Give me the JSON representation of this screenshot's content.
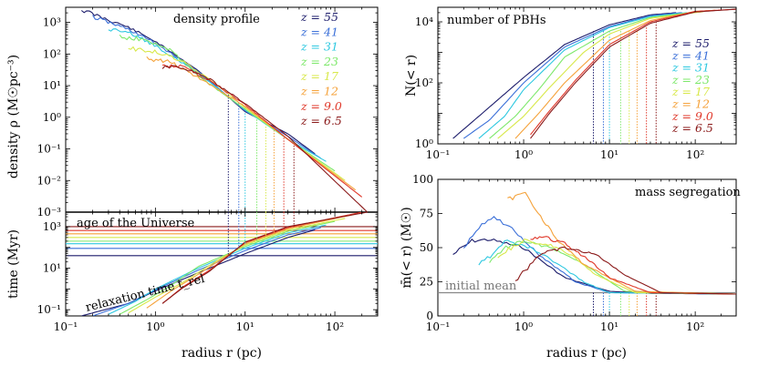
{
  "colors": [
    "#1c1c6b",
    "#3a6fd8",
    "#2ec8e0",
    "#7de86a",
    "#d8e84a",
    "#f5a23a",
    "#e0392b",
    "#8b1a1a"
  ],
  "chart_data": [
    {
      "type": "line",
      "id": "density",
      "title": "density profile",
      "xlabel": "",
      "ylabel": "density ρ (M☉pc⁻³)",
      "xscale": "log",
      "yscale": "log",
      "xlim": [
        0.1,
        300
      ],
      "ylim": [
        0.001,
        3000
      ],
      "yticks": [
        "10³",
        "10²",
        "10¹",
        "10⁰",
        "10⁻¹",
        "10⁻²",
        "10⁻³"
      ],
      "legend": [
        "z = 55",
        "z = 41",
        "z = 31",
        "z = 23",
        "z = 17",
        "z = 12",
        "z = 9.0",
        "z = 6.5"
      ],
      "legend_position": "top-right",
      "vlines": [
        6.5,
        8.5,
        10.0,
        13.5,
        17.0,
        21.0,
        27.0,
        35.0
      ],
      "series": [
        {
          "name": "z = 55",
          "rmin": 0.15,
          "rmax": 60,
          "x": [
            0.15,
            0.5,
            1,
            3,
            10,
            30,
            60
          ],
          "y": [
            2500,
            700,
            250,
            30,
            1.5,
            0.3,
            0.07
          ]
        },
        {
          "name": "z = 41",
          "rmin": 0.2,
          "rmax": 70,
          "x": [
            0.2,
            0.5,
            1,
            3,
            10,
            30,
            70
          ],
          "y": [
            1500,
            600,
            220,
            28,
            1.6,
            0.25,
            0.05
          ]
        },
        {
          "name": "z = 31",
          "rmin": 0.3,
          "rmax": 80,
          "x": [
            0.3,
            0.6,
            1,
            3,
            10,
            30,
            80
          ],
          "y": [
            600,
            400,
            180,
            25,
            1.7,
            0.2,
            0.04
          ]
        },
        {
          "name": "z = 23",
          "rmin": 0.4,
          "rmax": 100,
          "x": [
            0.4,
            0.8,
            1.5,
            3,
            10,
            30,
            100
          ],
          "y": [
            350,
            280,
            130,
            20,
            1.8,
            0.2,
            0.02
          ]
        },
        {
          "name": "z = 17",
          "rmin": 0.5,
          "rmax": 130,
          "x": [
            0.5,
            1,
            2,
            5,
            10,
            30,
            130
          ],
          "y": [
            150,
            120,
            60,
            10,
            2,
            0.2,
            0.01
          ]
        },
        {
          "name": "z = 12",
          "rmin": 0.8,
          "rmax": 170,
          "x": [
            0.8,
            1.5,
            3,
            10,
            30,
            170
          ],
          "y": [
            70,
            55,
            18,
            2.2,
            0.2,
            0.005
          ]
        },
        {
          "name": "z = 9.0",
          "rmin": 1.2,
          "rmax": 200,
          "x": [
            1.2,
            2,
            4,
            10,
            30,
            200
          ],
          "y": [
            45,
            40,
            15,
            2.5,
            0.2,
            0.003
          ]
        },
        {
          "name": "z = 6.5",
          "rmin": 1.2,
          "rmax": 230,
          "x": [
            1.2,
            2,
            4,
            10,
            30,
            230
          ],
          "y": [
            40,
            38,
            16,
            2.7,
            0.25,
            0.001
          ]
        }
      ]
    },
    {
      "type": "line",
      "id": "time",
      "xlabel": "radius r (pc)",
      "ylabel": "time (Myr)",
      "xscale": "log",
      "yscale": "log",
      "xlim": [
        0.1,
        300
      ],
      "ylim": [
        0.05,
        5000
      ],
      "xticks": [
        "10⁻¹",
        "10⁰",
        "10¹",
        "10²"
      ],
      "yticks": [
        "10³",
        "10¹",
        "10⁻¹"
      ],
      "annotations": [
        "age of the Universe",
        "relaxation time t_rel"
      ],
      "hlines": [
        {
          "name": "z = 55",
          "y": 40
        },
        {
          "name": "z = 41",
          "y": 90
        },
        {
          "name": "z = 31",
          "y": 150
        },
        {
          "name": "z = 23",
          "y": 200
        },
        {
          "name": "z = 17",
          "y": 300
        },
        {
          "name": "z = 12",
          "y": 450
        },
        {
          "name": "z = 9.0",
          "y": 650
        },
        {
          "name": "z = 6.5",
          "y": 1000
        }
      ],
      "series": [
        {
          "name": "z = 55",
          "x": [
            0.15,
            0.5,
            1,
            3,
            10,
            30,
            60
          ],
          "y": [
            0.05,
            0.2,
            0.8,
            6,
            50,
            300,
            700
          ]
        },
        {
          "name": "z = 41",
          "x": [
            0.2,
            0.5,
            1,
            3,
            10,
            30,
            70
          ],
          "y": [
            0.05,
            0.2,
            0.9,
            8,
            70,
            400,
            900
          ]
        },
        {
          "name": "z = 31",
          "x": [
            0.3,
            0.6,
            1,
            3,
            10,
            30,
            80
          ],
          "y": [
            0.06,
            0.25,
            1,
            10,
            90,
            500,
            1200
          ]
        },
        {
          "name": "z = 23",
          "x": [
            0.4,
            0.8,
            1.5,
            3,
            10,
            30,
            100
          ],
          "y": [
            0.06,
            0.3,
            1.5,
            12,
            110,
            600,
            1800
          ]
        },
        {
          "name": "z = 17",
          "x": [
            0.5,
            1,
            2,
            5,
            10,
            30,
            130
          ],
          "y": [
            0.07,
            0.4,
            2,
            25,
            130,
            700,
            2500
          ]
        },
        {
          "name": "z = 12",
          "x": [
            0.8,
            1.5,
            3,
            10,
            30,
            170
          ],
          "y": [
            0.12,
            0.8,
            5,
            150,
            800,
            4000
          ]
        },
        {
          "name": "z = 9.0",
          "x": [
            1.2,
            2,
            4,
            10,
            30,
            200
          ],
          "y": [
            0.2,
            1.2,
            8,
            170,
            900,
            5000
          ]
        },
        {
          "name": "z = 6.5",
          "x": [
            1.2,
            2,
            4,
            10,
            30,
            230
          ],
          "y": [
            0.2,
            1.1,
            7,
            180,
            1000,
            5000
          ]
        }
      ]
    },
    {
      "type": "line",
      "id": "number",
      "title": "number of PBHs",
      "xlabel": "",
      "ylabel": "N(< r)",
      "xscale": "log",
      "yscale": "log",
      "xlim": [
        0.1,
        300
      ],
      "ylim": [
        1,
        30000
      ],
      "xticks": [
        "10⁻¹",
        "10⁰",
        "10¹",
        "10²"
      ],
      "yticks": [
        "10⁴",
        "10²",
        "10⁰"
      ],
      "legend": [
        "z = 55",
        "z = 41",
        "z = 31",
        "z = 23",
        "z = 17",
        "z = 12",
        "z = 9.0",
        "z = 6.5"
      ],
      "legend_position": "right",
      "vlines": [
        6.5,
        8.5,
        10.0,
        13.5,
        17.0,
        21.0,
        27.0,
        35.0
      ],
      "series": [
        {
          "name": "z = 55",
          "x": [
            0.15,
            0.3,
            1,
            3,
            10,
            30,
            60
          ],
          "y": [
            1.5,
            8,
            150,
            1800,
            8000,
            17000,
            20000
          ]
        },
        {
          "name": "z = 41",
          "x": [
            0.2,
            0.4,
            1,
            3,
            10,
            30,
            70
          ],
          "y": [
            1.5,
            6,
            100,
            1500,
            7000,
            16000,
            20000
          ]
        },
        {
          "name": "z = 31",
          "x": [
            0.3,
            0.6,
            1,
            3,
            10,
            30,
            80
          ],
          "y": [
            1.5,
            8,
            60,
            1200,
            6500,
            15000,
            20000
          ]
        },
        {
          "name": "z = 23",
          "x": [
            0.4,
            0.8,
            1.5,
            3,
            10,
            30,
            100
          ],
          "y": [
            1.5,
            8,
            60,
            700,
            5000,
            14000,
            21000
          ]
        },
        {
          "name": "z = 17",
          "x": [
            0.5,
            1,
            2,
            5,
            10,
            30,
            130
          ],
          "y": [
            1.5,
            8,
            70,
            1000,
            4000,
            13000,
            22000
          ]
        },
        {
          "name": "z = 12",
          "x": [
            0.8,
            1.5,
            3,
            10,
            30,
            100,
            170
          ],
          "y": [
            1.5,
            10,
            100,
            2500,
            11000,
            22000,
            24000
          ]
        },
        {
          "name": "z = 9.0",
          "x": [
            1.2,
            2,
            4,
            10,
            30,
            100,
            300
          ],
          "y": [
            2,
            12,
            120,
            1800,
            10000,
            22000,
            26000
          ]
        },
        {
          "name": "z = 6.5",
          "x": [
            1.2,
            2,
            4,
            10,
            30,
            100,
            300
          ],
          "y": [
            1.5,
            10,
            100,
            1500,
            9000,
            21000,
            26000
          ]
        }
      ]
    },
    {
      "type": "line",
      "id": "mass",
      "title": "mass segregation",
      "xlabel": "radius r (pc)",
      "ylabel": "m̄(< r) (M☉)",
      "xscale": "log",
      "yscale": "linear",
      "xlim": [
        0.1,
        300
      ],
      "ylim": [
        0,
        100
      ],
      "xticks": [
        "10⁻¹",
        "10⁰",
        "10¹",
        "10²"
      ],
      "yticks": [
        "100",
        "75",
        "50",
        "25",
        "0"
      ],
      "annotations": [
        "initial mean"
      ],
      "hline": 17,
      "vlines": [
        6.5,
        8.5,
        10.0,
        13.5,
        17.0,
        21.0,
        27.0,
        35.0
      ],
      "series": [
        {
          "name": "z = 55",
          "x": [
            0.15,
            0.25,
            0.4,
            1,
            3,
            10,
            30,
            300
          ],
          "y": [
            45,
            55,
            56,
            50,
            28,
            18,
            16.5,
            16
          ]
        },
        {
          "name": "z = 41",
          "x": [
            0.2,
            0.3,
            0.45,
            0.7,
            1.5,
            4,
            10,
            300
          ],
          "y": [
            50,
            65,
            72,
            65,
            45,
            25,
            17,
            16
          ]
        },
        {
          "name": "z = 31",
          "x": [
            0.3,
            0.45,
            0.6,
            1,
            2,
            5,
            10,
            300
          ],
          "y": [
            38,
            45,
            55,
            52,
            42,
            25,
            17,
            16
          ]
        },
        {
          "name": "z = 23",
          "x": [
            0.4,
            0.6,
            1,
            2,
            5,
            15,
            300
          ],
          "y": [
            40,
            50,
            55,
            50,
            38,
            18,
            16
          ]
        },
        {
          "name": "z = 17",
          "x": [
            0.5,
            1,
            2,
            3.5,
            7,
            20,
            300
          ],
          "y": [
            44,
            55,
            52,
            45,
            30,
            17,
            16
          ]
        },
        {
          "name": "z = 12",
          "x": [
            0.65,
            0.85,
            1.05,
            1.5,
            2.5,
            5,
            20,
            300
          ],
          "y": [
            85,
            88,
            90,
            75,
            55,
            38,
            18,
            16
          ]
        },
        {
          "name": "z = 9.0",
          "x": [
            1.2,
            1.6,
            3,
            6,
            10,
            30,
            300
          ],
          "y": [
            55,
            58,
            53,
            40,
            28,
            17,
            16
          ]
        },
        {
          "name": "z = 6.5",
          "x": [
            0.8,
            1.5,
            3,
            7,
            15,
            40,
            300
          ],
          "y": [
            25,
            45,
            50,
            45,
            30,
            17,
            16
          ]
        }
      ]
    }
  ]
}
